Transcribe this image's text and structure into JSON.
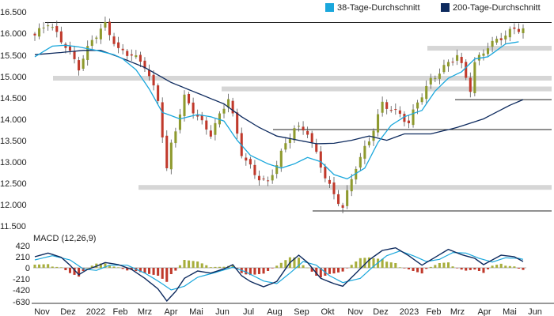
{
  "chart_data": [
    {
      "type": "candlestick",
      "title": "",
      "legend": {
        "position": "top-right",
        "items": [
          {
            "label": "38-Tage-Durchschnitt",
            "color": "#1aa7dc"
          },
          {
            "label": "200-Tage-Durchschnitt",
            "color": "#0d2a5e"
          }
        ]
      },
      "yaxis": {
        "ticks": [
          "16.500",
          "16.000",
          "15.500",
          "15.000",
          "14.500",
          "14.000",
          "13.500",
          "13.000",
          "12.500",
          "12.000",
          "11.500"
        ],
        "ylim": [
          11500,
          16500
        ]
      },
      "xaxis": {
        "ticks": [
          "Nov",
          "Dez",
          "2022",
          "Feb",
          "Mrz",
          "Apr",
          "Mai",
          "Jun",
          "Jul",
          "Aug",
          "Sep",
          "Okt",
          "Nov",
          "Dez",
          "2023",
          "Feb",
          "Mrz",
          "Apr",
          "Mai",
          "Jun"
        ]
      },
      "grid": false,
      "colors": {
        "up": "#8e9a2e",
        "down": "#c0392b",
        "wick": "#555555"
      },
      "price_anchors": [
        [
          0,
          15950
        ],
        [
          3,
          16250
        ],
        [
          7,
          15700
        ],
        [
          10,
          15200
        ],
        [
          13,
          15850
        ],
        [
          16,
          16200
        ],
        [
          19,
          15600
        ],
        [
          22,
          15500
        ],
        [
          25,
          15250
        ],
        [
          28,
          14450
        ],
        [
          30,
          12800
        ],
        [
          31,
          13400
        ],
        [
          34,
          14500
        ],
        [
          36,
          14200
        ],
        [
          38,
          13900
        ],
        [
          40,
          13650
        ],
        [
          44,
          14500
        ],
        [
          47,
          13200
        ],
        [
          50,
          12700
        ],
        [
          53,
          12500
        ],
        [
          56,
          13200
        ],
        [
          59,
          13800
        ],
        [
          62,
          13700
        ],
        [
          65,
          12900
        ],
        [
          68,
          12200
        ],
        [
          70,
          11950
        ],
        [
          73,
          12900
        ],
        [
          76,
          13500
        ],
        [
          79,
          14350
        ],
        [
          83,
          14100
        ],
        [
          85,
          13900
        ],
        [
          87,
          14400
        ],
        [
          90,
          14900
        ],
        [
          93,
          15200
        ],
        [
          96,
          15500
        ],
        [
          99,
          14700
        ],
        [
          100,
          15300
        ],
        [
          103,
          15700
        ],
        [
          106,
          15900
        ],
        [
          109,
          16100
        ],
        [
          111,
          16100
        ]
      ],
      "sma38": [
        [
          0,
          15450
        ],
        [
          4,
          15700
        ],
        [
          7,
          15720
        ],
        [
          10,
          15680
        ],
        [
          14,
          15600
        ],
        [
          18,
          15500
        ],
        [
          20,
          15400
        ],
        [
          23,
          15150
        ],
        [
          26,
          14700
        ],
        [
          29,
          14150
        ],
        [
          33,
          14000
        ],
        [
          37,
          14100
        ],
        [
          40,
          14050
        ],
        [
          43,
          13950
        ],
        [
          46,
          13500
        ],
        [
          49,
          13150
        ],
        [
          53,
          12950
        ],
        [
          56,
          12850
        ],
        [
          59,
          12950
        ],
        [
          62,
          13100
        ],
        [
          65,
          13000
        ],
        [
          68,
          12700
        ],
        [
          71,
          12600
        ],
        [
          75,
          12850
        ],
        [
          78,
          13450
        ],
        [
          81,
          13850
        ],
        [
          84,
          14050
        ],
        [
          88,
          14200
        ],
        [
          91,
          14650
        ],
        [
          94,
          14950
        ],
        [
          97,
          15100
        ],
        [
          100,
          15400
        ],
        [
          103,
          15450
        ],
        [
          107,
          15750
        ],
        [
          110,
          15800
        ]
      ],
      "sma200": [
        [
          0,
          15500
        ],
        [
          6,
          15550
        ],
        [
          11,
          15600
        ],
        [
          15,
          15600
        ],
        [
          19,
          15450
        ],
        [
          25,
          15200
        ],
        [
          31,
          14850
        ],
        [
          37,
          14600
        ],
        [
          43,
          14350
        ],
        [
          47,
          14050
        ],
        [
          51,
          13800
        ],
        [
          55,
          13600
        ],
        [
          60,
          13500
        ],
        [
          64,
          13420
        ],
        [
          68,
          13430
        ],
        [
          72,
          13500
        ],
        [
          76,
          13600
        ],
        [
          80,
          13500
        ],
        [
          84,
          13650
        ],
        [
          90,
          13650
        ],
        [
          96,
          13800
        ],
        [
          102,
          14000
        ],
        [
          108,
          14320
        ],
        [
          111,
          14450
        ]
      ],
      "support_resistance_bands": [
        15650,
        14950,
        14700,
        12400
      ],
      "horizontal_lines": [
        16250,
        14450,
        13750,
        11850
      ]
    },
    {
      "type": "line",
      "title": "MACD (12,26,9)",
      "yaxis": {
        "ticks": [
          "420",
          "210",
          "0",
          "-210",
          "-420",
          "-630"
        ],
        "ylim": [
          -630,
          420
        ]
      },
      "series": [],
      "macd": [
        [
          0,
          210
        ],
        [
          3,
          280
        ],
        [
          6,
          200
        ],
        [
          8,
          50
        ],
        [
          10,
          -130
        ],
        [
          12,
          -30
        ],
        [
          14,
          30
        ],
        [
          16,
          100
        ],
        [
          19,
          60
        ],
        [
          22,
          -30
        ],
        [
          25,
          -200
        ],
        [
          28,
          -400
        ],
        [
          30,
          -630
        ],
        [
          32,
          -450
        ],
        [
          34,
          -200
        ],
        [
          37,
          -60
        ],
        [
          40,
          -100
        ],
        [
          43,
          -20
        ],
        [
          45,
          60
        ],
        [
          47,
          -150
        ],
        [
          49,
          -260
        ],
        [
          52,
          -360
        ],
        [
          55,
          -260
        ],
        [
          58,
          100
        ],
        [
          60,
          240
        ],
        [
          62,
          100
        ],
        [
          65,
          -200
        ],
        [
          68,
          -300
        ],
        [
          70,
          -350
        ],
        [
          73,
          -100
        ],
        [
          76,
          150
        ],
        [
          79,
          330
        ],
        [
          82,
          380
        ],
        [
          85,
          230
        ],
        [
          88,
          50
        ],
        [
          91,
          200
        ],
        [
          94,
          350
        ],
        [
          97,
          250
        ],
        [
          100,
          180
        ],
        [
          102,
          60
        ],
        [
          104,
          150
        ],
        [
          106,
          240
        ],
        [
          109,
          210
        ],
        [
          111,
          120
        ]
      ],
      "signal": [
        [
          0,
          150
        ],
        [
          4,
          230
        ],
        [
          8,
          150
        ],
        [
          11,
          -20
        ],
        [
          14,
          -50
        ],
        [
          17,
          50
        ],
        [
          21,
          50
        ],
        [
          25,
          -100
        ],
        [
          28,
          -250
        ],
        [
          31,
          -420
        ],
        [
          34,
          -350
        ],
        [
          37,
          -180
        ],
        [
          41,
          -90
        ],
        [
          45,
          10
        ],
        [
          48,
          -80
        ],
        [
          52,
          -250
        ],
        [
          55,
          -300
        ],
        [
          58,
          -100
        ],
        [
          61,
          120
        ],
        [
          64,
          50
        ],
        [
          67,
          -150
        ],
        [
          70,
          -280
        ],
        [
          74,
          -200
        ],
        [
          77,
          30
        ],
        [
          80,
          230
        ],
        [
          83,
          320
        ],
        [
          86,
          230
        ],
        [
          89,
          120
        ],
        [
          92,
          160
        ],
        [
          95,
          290
        ],
        [
          98,
          280
        ],
        [
          101,
          180
        ],
        [
          104,
          110
        ],
        [
          107,
          190
        ],
        [
          110,
          180
        ],
        [
          111,
          160
        ]
      ]
    }
  ]
}
